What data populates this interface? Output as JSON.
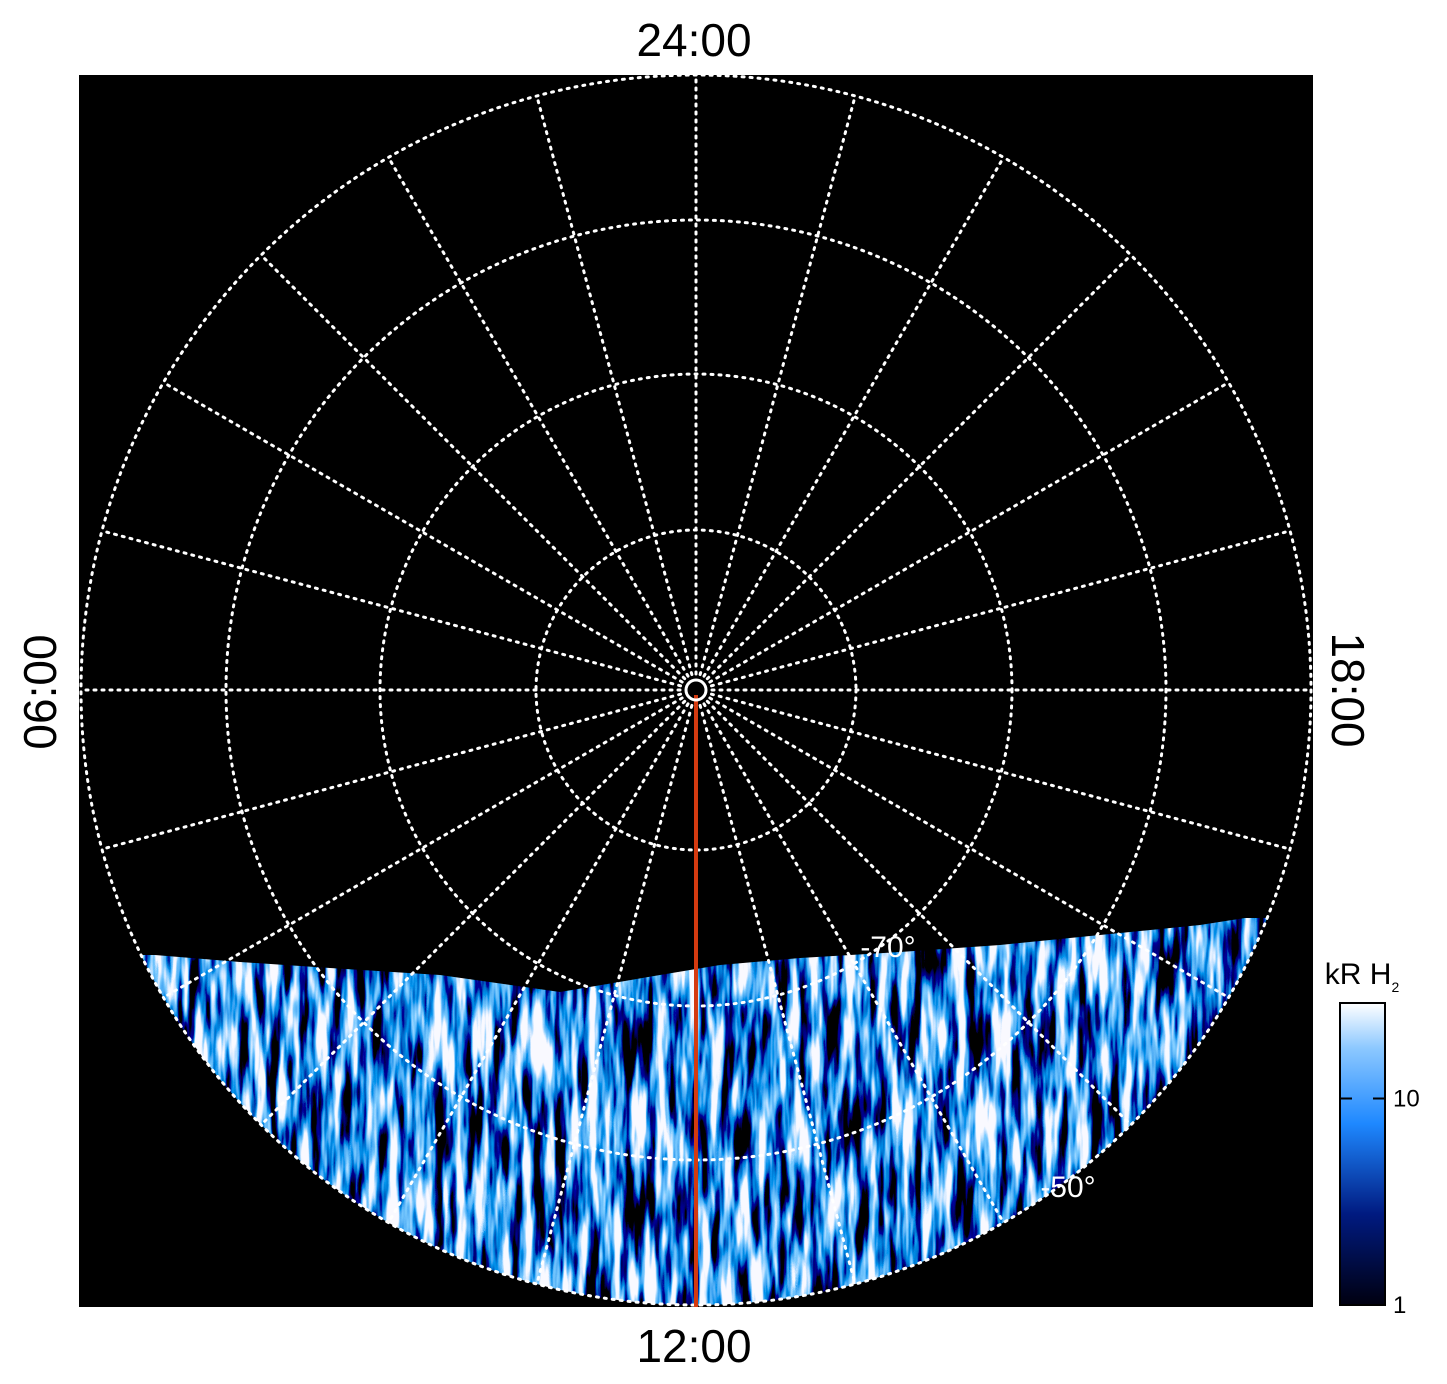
{
  "local_time_labels": {
    "top": "24:00",
    "bottom": "12:00",
    "left": "06:00",
    "right": "18:00"
  },
  "latitude_labels": [
    "-70°",
    "-50°"
  ],
  "colorbar": {
    "title": "kR H",
    "title_subscript": "2",
    "scale": "log",
    "lim": [
      1,
      29
    ],
    "ticks": [
      1,
      10
    ]
  }
}
